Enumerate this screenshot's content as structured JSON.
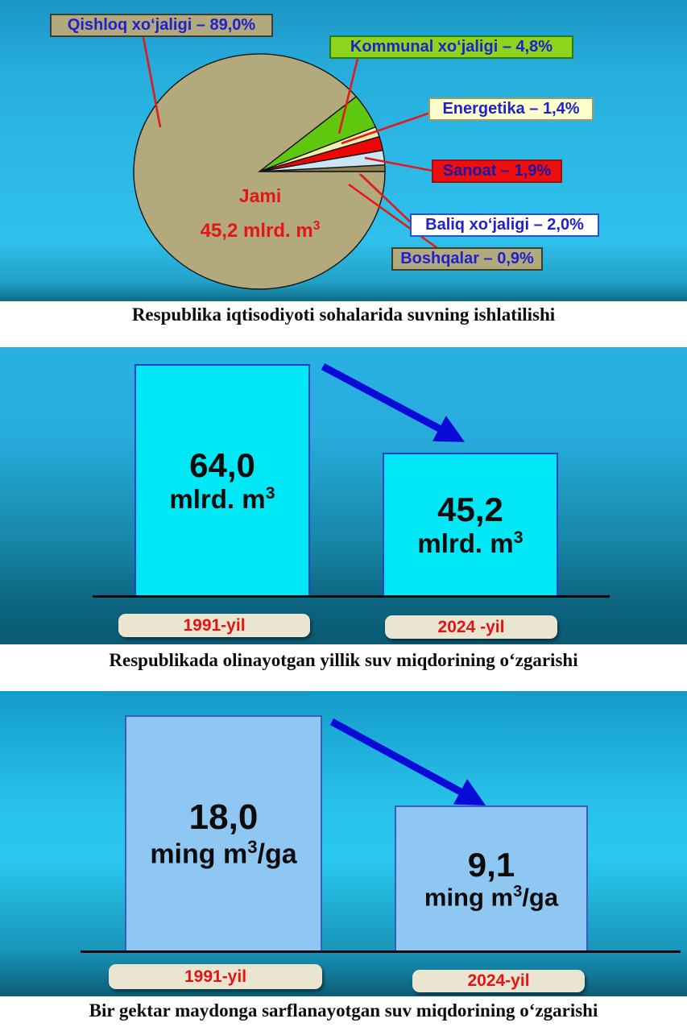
{
  "pie_panel": {
    "caption": "Respublika iqtisodiyoti sohalarida suvning ishlatilishi",
    "center_title": "Jami",
    "center_value": "45,2",
    "center_unit_pre": "mlrd. m",
    "center_unit_sup": "3",
    "callouts": [
      {
        "id": "qishloq",
        "text": "Qishloq xo‘jaligi – 89,0%",
        "bg": "#b2a97c",
        "border": "#3f3f2f",
        "fg": "#2121cc"
      },
      {
        "id": "kommunal",
        "text": "Kommunal xo‘jaligi – 4,8%",
        "bg": "#8ed41c",
        "border": "#267d12",
        "fg": "#2121cc"
      },
      {
        "id": "energetika",
        "text": "Energetika – 1,4%",
        "bg": "#ffffca",
        "border": "#9a9a6a",
        "fg": "#2121cc"
      },
      {
        "id": "sanoat",
        "text": "Sanoat – 1,9%",
        "bg": "#ee0e0e",
        "border": "#a00d0d",
        "fg": "#1b18a8"
      },
      {
        "id": "baliq",
        "text": "Baliq xo‘jaligi – 2,0%",
        "bg": "#ffffff",
        "border": "#2a52cc",
        "fg": "#2121cc"
      },
      {
        "id": "boshqalar",
        "text": "Boshqalar – 0,9%",
        "bg": "#b2a97c",
        "border": "#3f3f2f",
        "fg": "#2121cc"
      }
    ],
    "slices": [
      {
        "name": "boshqalar",
        "pct": 0.9,
        "color": "#8c7e52"
      },
      {
        "name": "baliq",
        "pct": 2.0,
        "color": "#c9e5f6"
      },
      {
        "name": "sanoat",
        "pct": 1.9,
        "color": "#ee0606"
      },
      {
        "name": "energetika",
        "pct": 1.4,
        "color": "#f3eeab"
      },
      {
        "name": "kommunal",
        "pct": 4.8,
        "color": "#5ec70e"
      },
      {
        "name": "qishloq",
        "pct": 89.0,
        "color": "#b2a97c"
      }
    ]
  },
  "chart_annual": {
    "caption": "Respublikada olinayotgan yillik suv miqdorining o‘zgarishi",
    "bar1": {
      "value": "64,0",
      "unit_pre": "mlrd. m",
      "unit_sup": "3",
      "unit_post": ""
    },
    "bar2": {
      "value": "45,2",
      "unit_pre": "mlrd. m",
      "unit_sup": "3",
      "unit_post": ""
    },
    "year1": "1991-yil",
    "year2": "2024 -yil"
  },
  "chart_hectare": {
    "caption": "Bir gektar maydonga sarflanayotgan suv miqdorining o‘zgarishi",
    "bar1": {
      "value": "18,0",
      "unit_pre": "ming m",
      "unit_sup": "3",
      "unit_post": "/ga"
    },
    "bar2": {
      "value": "9,1",
      "unit_pre": "ming m",
      "unit_sup": "3",
      "unit_post": "/ga"
    },
    "year1": "1991-yil",
    "year2": "2024-yil"
  },
  "chart_data": [
    {
      "type": "pie",
      "title": "Respublika iqtisodiyoti sohalarida suvning ishlatilishi",
      "center_label": "Jami 45,2 mlrd. m³",
      "labels": [
        "Qishloq xo‘jaligi",
        "Kommunal xo‘jaligi",
        "Energetika",
        "Sanoat",
        "Baliq xo‘jaligi",
        "Boshqalar"
      ],
      "values": [
        89.0,
        4.8,
        1.4,
        1.9,
        2.0,
        0.9
      ],
      "unit": "%",
      "colors": [
        "#b2a97c",
        "#5ec70e",
        "#f3eeab",
        "#ee0606",
        "#c9e5f6",
        "#8c7e52"
      ],
      "legend_position": "callouts",
      "grid": false
    },
    {
      "type": "bar",
      "title": "Respublikada olinayotgan yillik suv miqdorining o‘zgarishi",
      "categories": [
        "1991-yil",
        "2024 -yil"
      ],
      "values": [
        64.0,
        45.2
      ],
      "unit": "mlrd. m³",
      "bar_color": "#00e7f6",
      "annotation": "decreasing arrow from 1991 bar to 2024 bar",
      "grid": false
    },
    {
      "type": "bar",
      "title": "Bir gektar maydonga sarflanayotgan suv miqdorining o‘zgarishi",
      "categories": [
        "1991-yil",
        "2024-yil"
      ],
      "values": [
        18.0,
        9.1
      ],
      "unit": "ming m³/ga",
      "bar_color": "#8fc7f3",
      "annotation": "decreasing arrow from 1991 bar to 2024 bar",
      "grid": false
    }
  ]
}
